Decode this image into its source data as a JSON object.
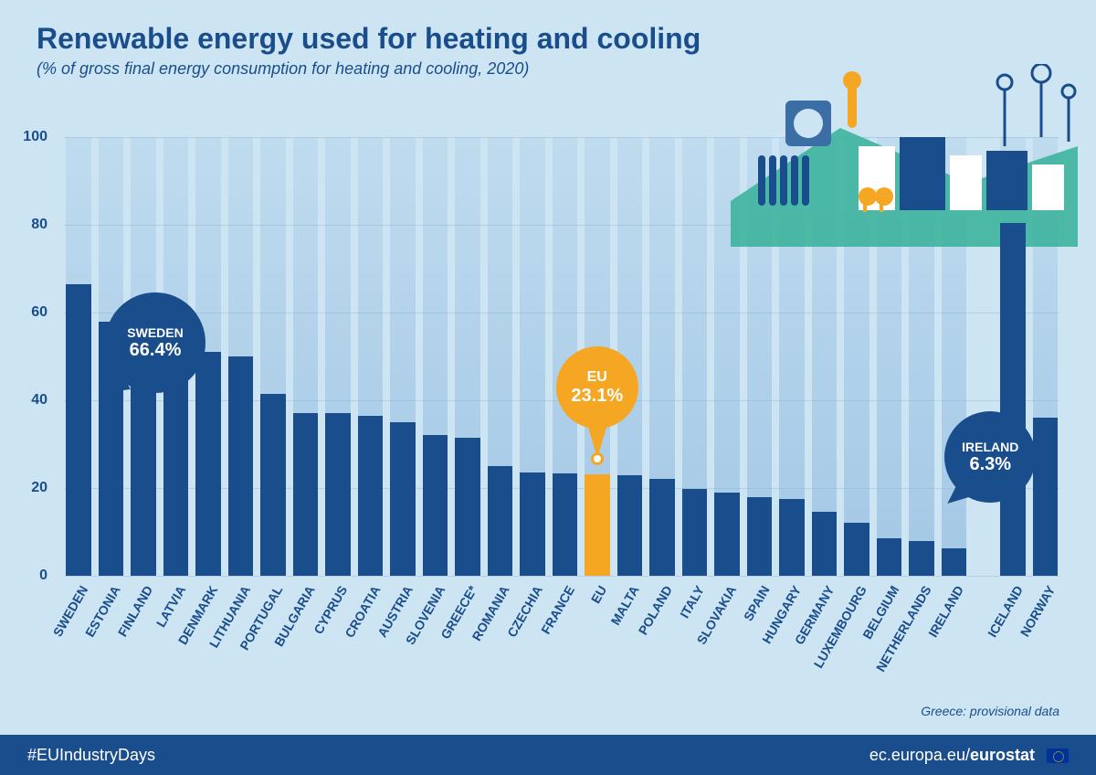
{
  "header": {
    "title": "Renewable energy used for heating and cooling",
    "subtitle": "(% of gross final energy consumption for heating and cooling, 2020)"
  },
  "chart": {
    "type": "bar",
    "ylim": [
      0,
      100
    ],
    "ytick_step": 20,
    "yticks": [
      0,
      20,
      40,
      60,
      80,
      100
    ],
    "bar_color": "#1a4d8c",
    "highlight_color": "#f5a623",
    "background_bar_color": "#a6c9e2",
    "grid_color": "#b0d0e5",
    "page_background": "#cde5f3",
    "label_fontsize": 14,
    "tick_fontsize": 16,
    "countries": [
      {
        "label": "SWEDEN",
        "value": 66.4,
        "highlight": false
      },
      {
        "label": "ESTONIA",
        "value": 58.0,
        "highlight": false
      },
      {
        "label": "FINLAND",
        "value": 57.5,
        "highlight": false
      },
      {
        "label": "LATVIA",
        "value": 57.0,
        "highlight": false
      },
      {
        "label": "DENMARK",
        "value": 51.0,
        "highlight": false
      },
      {
        "label": "LITHUANIA",
        "value": 50.0,
        "highlight": false
      },
      {
        "label": "PORTUGAL",
        "value": 41.5,
        "highlight": false
      },
      {
        "label": "BULGARIA",
        "value": 37.0,
        "highlight": false
      },
      {
        "label": "CYPRUS",
        "value": 37.0,
        "highlight": false
      },
      {
        "label": "CROATIA",
        "value": 36.5,
        "highlight": false
      },
      {
        "label": "AUSTRIA",
        "value": 35.0,
        "highlight": false
      },
      {
        "label": "SLOVENIA",
        "value": 32.0,
        "highlight": false
      },
      {
        "label": "GREECE*",
        "value": 31.5,
        "highlight": false
      },
      {
        "label": "ROMANIA",
        "value": 25.0,
        "highlight": false
      },
      {
        "label": "CZECHIA",
        "value": 23.5,
        "highlight": false
      },
      {
        "label": "FRANCE",
        "value": 23.3,
        "highlight": false
      },
      {
        "label": "EU",
        "value": 23.1,
        "highlight": true
      },
      {
        "label": "MALTA",
        "value": 23.0,
        "highlight": false
      },
      {
        "label": "POLAND",
        "value": 22.0,
        "highlight": false
      },
      {
        "label": "ITALY",
        "value": 19.8,
        "highlight": false
      },
      {
        "label": "SLOVAKIA",
        "value": 19.0,
        "highlight": false
      },
      {
        "label": "SPAIN",
        "value": 18.0,
        "highlight": false
      },
      {
        "label": "HUNGARY",
        "value": 17.5,
        "highlight": false
      },
      {
        "label": "GERMANY",
        "value": 14.5,
        "highlight": false
      },
      {
        "label": "LUXEMBOURG",
        "value": 12.0,
        "highlight": false
      },
      {
        "label": "BELGIUM",
        "value": 8.5,
        "highlight": false
      },
      {
        "label": "NETHERLANDS",
        "value": 8.0,
        "highlight": false
      },
      {
        "label": "IRELAND",
        "value": 6.3,
        "highlight": false
      }
    ],
    "extra": [
      {
        "label": "ICELAND",
        "value": 80.5,
        "highlight": false
      },
      {
        "label": "NORWAY",
        "value": 36.0,
        "highlight": false
      }
    ]
  },
  "callouts": {
    "sweden": {
      "label": "SWEDEN",
      "value": "66.4%"
    },
    "eu": {
      "label": "EU",
      "value": "23.1%"
    },
    "ireland": {
      "label": "IRELAND",
      "value": "6.3%"
    }
  },
  "footnote": "Greece: provisional data",
  "footer": {
    "hashtag": "#EUIndustryDays",
    "url_prefix": "ec.europa.eu/",
    "url_bold": "eurostat"
  }
}
